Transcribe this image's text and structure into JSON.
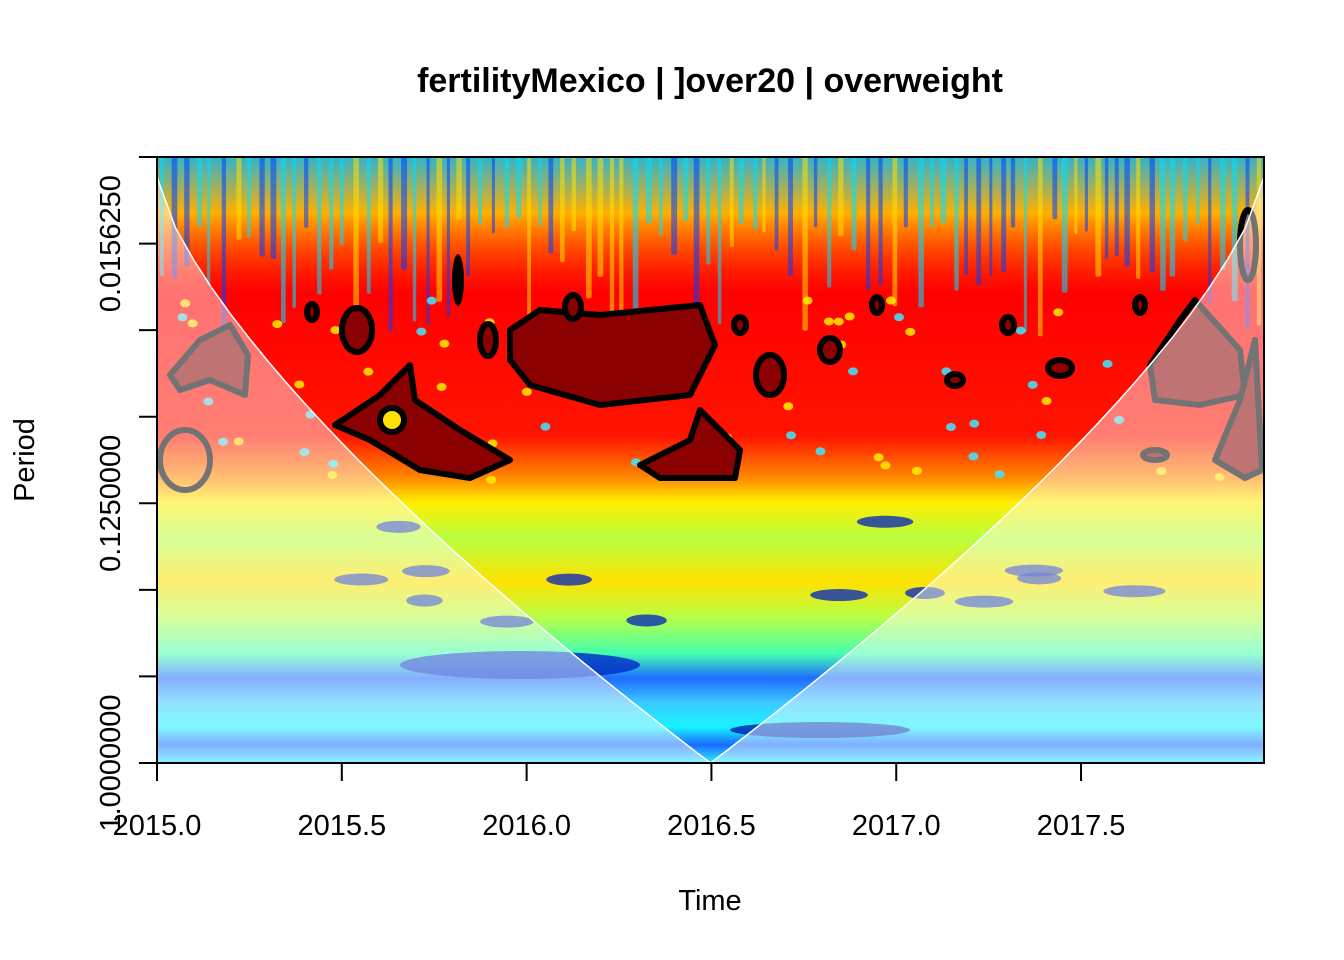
{
  "chart_data": {
    "type": "heatmap",
    "title": "fertilityMexico | ]over20 | overweight",
    "xlabel": "Time",
    "ylabel": "Period",
    "x_ticks": [
      "2015.0",
      "2015.5",
      "2016.0",
      "2016.5",
      "2017.0",
      "2017.5"
    ],
    "x_tick_values": [
      2015.0,
      2015.5,
      2016.0,
      2016.5,
      2017.0,
      2017.5
    ],
    "xlim": [
      2015.0,
      2017.995
    ],
    "y_scale": "log2",
    "y_direction": "period increases downward",
    "y_ticks": [
      "0.0156250",
      "0.1250000",
      "1.0000000"
    ],
    "y_tick_values": [
      0.015625,
      0.125,
      1.0
    ],
    "ylim": [
      0.00781,
      1.0
    ],
    "grid": false,
    "colormap": "jet (blue = low power, red = high power)",
    "cone_of_influence": true,
    "significance_contours": true,
    "power_bands": [
      {
        "period_range": [
          0.0078,
          0.012
        ],
        "level": "mixed high/low (fine oscillation)"
      },
      {
        "period_range": [
          0.012,
          0.04
        ],
        "level": "high (red), significant patches"
      },
      {
        "period_range": [
          0.04,
          0.08
        ],
        "level": "high (red/orange)"
      },
      {
        "period_range": [
          0.08,
          0.2
        ],
        "level": "medium (yellow/green)"
      },
      {
        "period_range": [
          0.2,
          0.5
        ],
        "level": "low (cyan/blue)"
      },
      {
        "period_range": [
          0.5,
          1.0
        ],
        "level": "low (cyan)"
      }
    ]
  }
}
